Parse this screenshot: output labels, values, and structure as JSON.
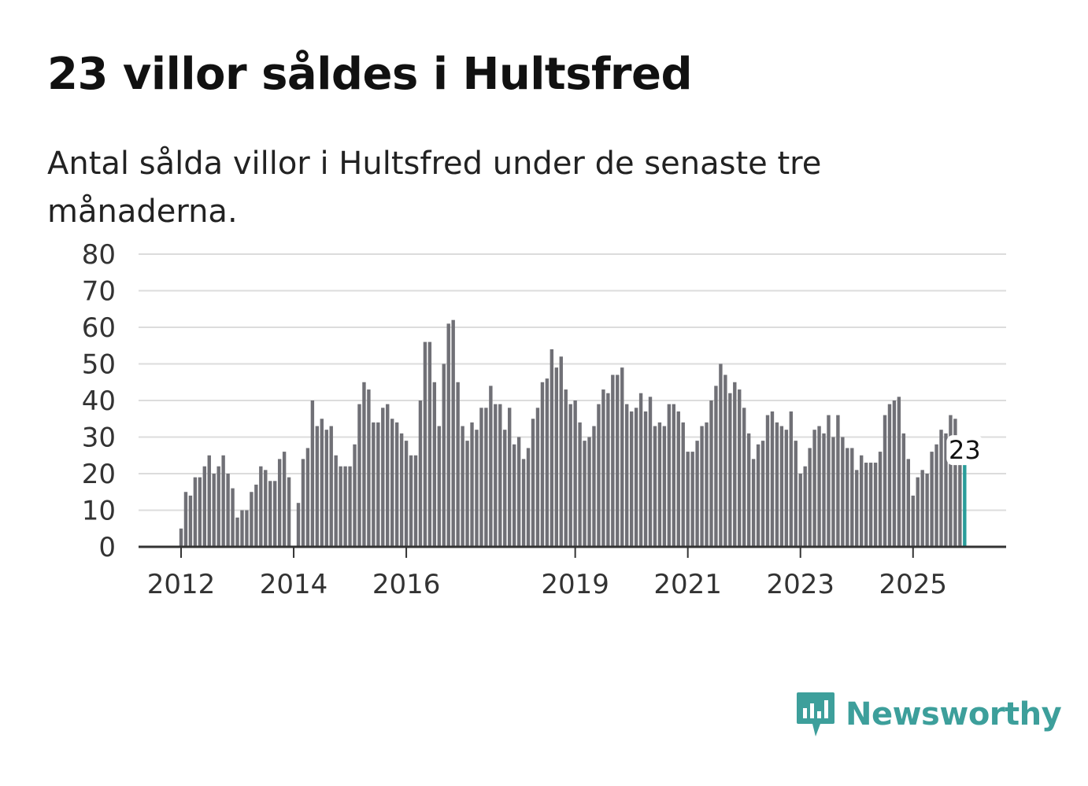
{
  "header": {
    "title": "23 villor såldes i Hultsfred",
    "subtitle": "Antal sålda villor i Hultsfred under de senaste tre månaderna."
  },
  "brand": {
    "name": "Newsworthy",
    "color": "#3d9f9b"
  },
  "colors": {
    "bar": "#707076",
    "highlight": "#2a9d9a",
    "grid": "#dcdcdc",
    "axis": "#333333"
  },
  "chart_data": {
    "type": "bar",
    "title": "23 villor såldes i Hultsfred",
    "xlabel": "",
    "ylabel": "",
    "ylim": [
      0,
      80
    ],
    "yticks": [
      0,
      10,
      20,
      30,
      40,
      50,
      60,
      70,
      80
    ],
    "xticks": [
      {
        "label": "2012",
        "year": 2012
      },
      {
        "label": "2014",
        "year": 2014
      },
      {
        "label": "2016",
        "year": 2016
      },
      {
        "label": "2019",
        "year": 2019
      },
      {
        "label": "2021",
        "year": 2021
      },
      {
        "label": "2023",
        "year": 2023
      },
      {
        "label": "2025",
        "year": 2025
      }
    ],
    "start": {
      "year": 2012,
      "month": 1
    },
    "interval": "monthly, rolling three-month total",
    "values": [
      5,
      15,
      14,
      19,
      19,
      22,
      25,
      20,
      22,
      25,
      20,
      16,
      8,
      10,
      10,
      15,
      17,
      22,
      21,
      18,
      18,
      24,
      26,
      19,
      null,
      12,
      24,
      27,
      40,
      33,
      35,
      32,
      33,
      25,
      22,
      22,
      22,
      28,
      39,
      45,
      43,
      34,
      34,
      38,
      39,
      35,
      34,
      31,
      29,
      25,
      25,
      40,
      56,
      56,
      45,
      33,
      50,
      61,
      62,
      45,
      33,
      29,
      34,
      32,
      38,
      38,
      44,
      39,
      39,
      32,
      38,
      28,
      30,
      24,
      27,
      35,
      38,
      45,
      46,
      54,
      49,
      52,
      43,
      39,
      40,
      34,
      29,
      30,
      33,
      39,
      43,
      42,
      47,
      47,
      49,
      39,
      37,
      38,
      42,
      37,
      41,
      33,
      34,
      33,
      39,
      39,
      37,
      34,
      26,
      26,
      29,
      33,
      34,
      40,
      44,
      50,
      47,
      42,
      45,
      43,
      38,
      31,
      24,
      28,
      29,
      36,
      37,
      34,
      33,
      32,
      37,
      29,
      20,
      22,
      27,
      32,
      33,
      31,
      36,
      30,
      36,
      30,
      27,
      27,
      21,
      25,
      23,
      23,
      23,
      26,
      36,
      39,
      40,
      41,
      31,
      24,
      14,
      19,
      21,
      20,
      26,
      28,
      32,
      31,
      36,
      35,
      26,
      23
    ],
    "highlight_last": true,
    "annotation": {
      "label": "23",
      "value": 23
    }
  }
}
